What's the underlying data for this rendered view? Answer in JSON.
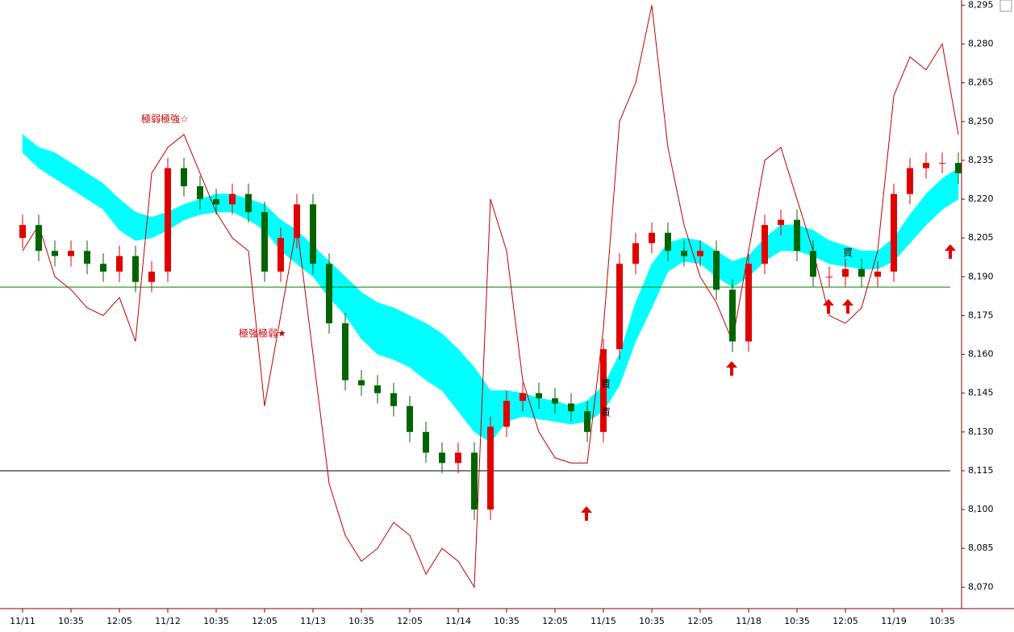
{
  "chart_data": {
    "type": "candlestick",
    "categories": [
      "11/11",
      null,
      null,
      "10:35",
      null,
      null,
      "12:05",
      null,
      null,
      "11/12",
      null,
      null,
      "10:35",
      null,
      null,
      "12:05",
      null,
      null,
      "11/13",
      null,
      null,
      "10:35",
      null,
      null,
      "12:05",
      null,
      null,
      "11/14",
      null,
      null,
      "10:35",
      null,
      null,
      "12:05",
      null,
      null,
      "11/15",
      null,
      null,
      "10:35",
      null,
      null,
      "12:05",
      null,
      null,
      "11/18",
      null,
      null,
      "10:35",
      null,
      null,
      "12:05",
      null,
      null,
      "11/19",
      null,
      null,
      "10:35",
      null
    ],
    "open": [
      8205,
      8210,
      8200,
      8198,
      8200,
      8195,
      8192,
      8198,
      8188,
      8192,
      8232,
      8225,
      8220,
      8218,
      8222,
      8215,
      8192,
      8205,
      8218,
      8195,
      8172,
      8150,
      8148,
      8145,
      8140,
      8130,
      8122,
      8118,
      8122,
      8100,
      8132,
      8142,
      8145,
      8143,
      8141,
      8138,
      8130,
      8162,
      8195,
      8203,
      8207,
      8200,
      8198,
      8200,
      8185,
      8165,
      8195,
      8210,
      8212,
      8200,
      8190,
      8190,
      8193,
      8190,
      8192,
      8222,
      8232,
      8234,
      8234
    ],
    "high": [
      8214,
      8214,
      8204,
      8204,
      8204,
      8199,
      8202,
      8202,
      8196,
      8236,
      8236,
      8229,
      8224,
      8226,
      8226,
      8219,
      8209,
      8222,
      8222,
      8199,
      8176,
      8154,
      8152,
      8149,
      8144,
      8134,
      8126,
      8126,
      8126,
      8136,
      8146,
      8149,
      8149,
      8147,
      8145,
      8142,
      8166,
      8199,
      8207,
      8211,
      8211,
      8204,
      8204,
      8204,
      8189,
      8199,
      8214,
      8216,
      8216,
      8204,
      8194,
      8197,
      8197,
      8196,
      8226,
      8236,
      8238,
      8238,
      8238
    ],
    "low": [
      8201,
      8196,
      8194,
      8194,
      8191,
      8188,
      8188,
      8184,
      8184,
      8188,
      8221,
      8216,
      8214,
      8214,
      8211,
      8188,
      8188,
      8201,
      8191,
      8168,
      8146,
      8144,
      8141,
      8136,
      8126,
      8118,
      8114,
      8114,
      8096,
      8096,
      8128,
      8138,
      8139,
      8137,
      8134,
      8126,
      8126,
      8158,
      8191,
      8199,
      8196,
      8194,
      8194,
      8181,
      8161,
      8161,
      8191,
      8206,
      8196,
      8186,
      8186,
      8186,
      8186,
      8186,
      8188,
      8218,
      8228,
      8230,
      8226
    ],
    "close": [
      8210,
      8200,
      8198,
      8200,
      8195,
      8192,
      8198,
      8188,
      8192,
      8232,
      8225,
      8220,
      8218,
      8222,
      8215,
      8192,
      8205,
      8218,
      8195,
      8172,
      8150,
      8148,
      8145,
      8140,
      8130,
      8122,
      8118,
      8122,
      8100,
      8132,
      8142,
      8145,
      8143,
      8141,
      8138,
      8130,
      8162,
      8195,
      8203,
      8207,
      8200,
      8198,
      8200,
      8185,
      8165,
      8195,
      8210,
      8212,
      8200,
      8190,
      8190,
      8193,
      8190,
      8192,
      8222,
      8232,
      8234,
      8234,
      8230
    ],
    "up_color": "#e00000",
    "down_color": "#006400",
    "cloud": {
      "color": "#00ffff",
      "upper": [
        8245,
        8240,
        8238,
        8234,
        8230,
        8226,
        8220,
        8215,
        8213,
        8215,
        8218,
        8220,
        8222,
        8222,
        8220,
        8218,
        8212,
        8208,
        8202,
        8196,
        8190,
        8184,
        8180,
        8178,
        8175,
        8172,
        8168,
        8162,
        8155,
        8146,
        8146,
        8145,
        8143,
        8142,
        8140,
        8142,
        8148,
        8160,
        8180,
        8195,
        8203,
        8205,
        8204,
        8200,
        8196,
        8198,
        8205,
        8210,
        8210,
        8208,
        8204,
        8202,
        8200,
        8200,
        8205,
        8214,
        8222,
        8228,
        8232
      ],
      "lower": [
        8238,
        8232,
        8228,
        8224,
        8220,
        8216,
        8208,
        8204,
        8205,
        8208,
        8212,
        8214,
        8215,
        8215,
        8212,
        8208,
        8200,
        8195,
        8190,
        8182,
        8175,
        8166,
        8160,
        8158,
        8155,
        8150,
        8146,
        8138,
        8130,
        8126,
        8134,
        8136,
        8135,
        8134,
        8133,
        8134,
        8138,
        8148,
        8165,
        8178,
        8192,
        8196,
        8195,
        8190,
        8186,
        8190,
        8196,
        8200,
        8200,
        8198,
        8195,
        8194,
        8193,
        8193,
        8196,
        8203,
        8210,
        8216,
        8220
      ]
    },
    "lines": [
      {
        "color": "#c00000",
        "values": [
          8200,
          8210,
          8190,
          8185,
          8178,
          8175,
          8182,
          8165,
          8230,
          8240,
          8245,
          8230,
          8215,
          8205,
          8200,
          8140,
          8175,
          8210,
          8160,
          8110,
          8090,
          8080,
          8085,
          8095,
          8090,
          8075,
          8085,
          8080,
          8070,
          8220,
          8200,
          8150,
          8130,
          8120,
          8118,
          8118,
          8170,
          8250,
          8265,
          8295,
          8240,
          8210,
          8190,
          8180,
          8165,
          8200,
          8235,
          8240,
          8220,
          8200,
          8175,
          8172,
          8178,
          8200,
          8260,
          8275,
          8270,
          8280,
          8245
        ]
      }
    ],
    "levels": [
      {
        "value": 8186,
        "color": "#008000"
      },
      {
        "value": 8115,
        "color": "#000000"
      }
    ],
    "annotations": [
      "極弱極強☆",
      "極強極弱★",
      "買",
      "買",
      "買"
    ],
    "ylim": [
      8062,
      8297
    ],
    "yticks": [
      {
        "value": 8070,
        "label": "8,070"
      },
      {
        "value": 8085,
        "label": "8,085"
      },
      {
        "value": 8100,
        "label": "8,100"
      },
      {
        "value": 8115,
        "label": "8,115"
      },
      {
        "value": 8130,
        "label": "8,130"
      },
      {
        "value": 8145,
        "label": "8,145"
      },
      {
        "value": 8160,
        "label": "8,160"
      },
      {
        "value": 8175,
        "label": "8,175"
      },
      {
        "value": 8190,
        "label": "8,190"
      },
      {
        "value": 8205,
        "label": "8,205"
      },
      {
        "value": 8220,
        "label": "8,220"
      },
      {
        "value": 8235,
        "label": "8,235"
      },
      {
        "value": 8250,
        "label": "8,250"
      },
      {
        "value": 8265,
        "label": "8,265"
      },
      {
        "value": 8280,
        "label": "8,280"
      },
      {
        "value": 8295,
        "label": "8,295"
      }
    ]
  }
}
